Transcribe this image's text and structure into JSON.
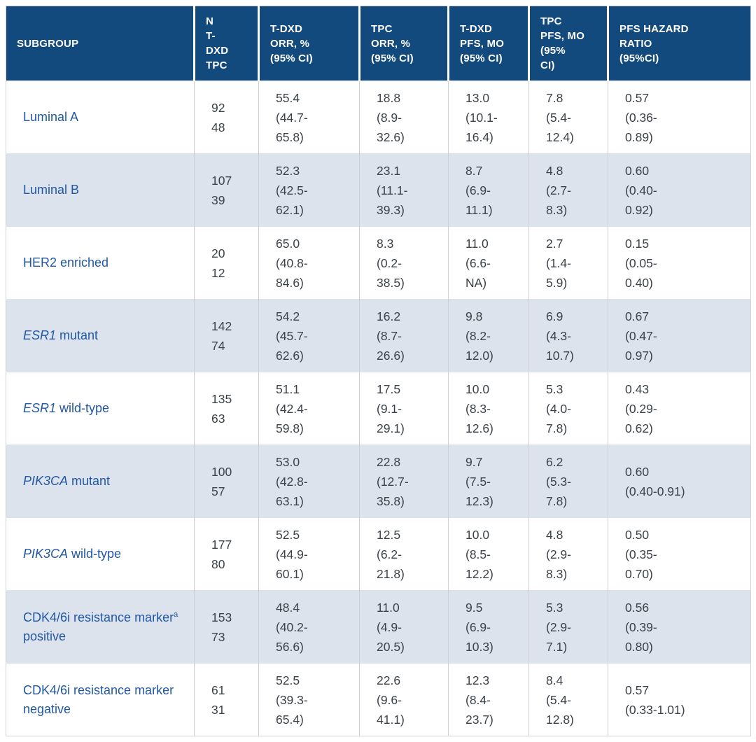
{
  "colors": {
    "header_bg": "#134A7D",
    "header_text": "#FFFFFF",
    "row_bg": "#FFFFFF",
    "row_alt_bg": "#DCE3ED",
    "subgroup_text": "#2158A5",
    "data_text": "#3B4248",
    "grid_line": "#CCD1D7"
  },
  "table": {
    "columns": [
      {
        "id": "subgroup",
        "label": "SUBGROUP",
        "lines": [
          "SUBGROUP"
        ]
      },
      {
        "id": "n",
        "label": "N T-DXD TPC",
        "lines": [
          "N",
          "T-",
          "DXD",
          "TPC"
        ]
      },
      {
        "id": "tdxd-orr",
        "label": "T-DXD ORR, % (95% CI)",
        "lines": [
          "T-DXD",
          "ORR, %",
          "(95% CI)"
        ]
      },
      {
        "id": "tpc-orr",
        "label": "TPC ORR, % (95% CI)",
        "lines": [
          "TPC",
          "ORR, %",
          "(95% CI)"
        ]
      },
      {
        "id": "tdxd-pfs",
        "label": "T-DXD PFS, MO (95% CI)",
        "lines": [
          "T-DXD",
          "PFS, MO",
          "(95% CI)"
        ]
      },
      {
        "id": "tpc-pfs",
        "label": "TPC PFS, MO (95% CI)",
        "lines": [
          "TPC",
          "PFS, MO",
          "(95%",
          "CI)"
        ]
      },
      {
        "id": "hazard-ratio",
        "label": "PFS HAZARD RATIO (95%CI)",
        "lines": [
          "PFS HAZARD",
          "RATIO",
          "(95%CI)"
        ]
      }
    ],
    "rows": [
      {
        "subgroup": {
          "italic": "",
          "text": "Luminal A",
          "sup": "",
          "post": ""
        },
        "cells": [
          [
            "92",
            "48"
          ],
          [
            "55.4",
            "(44.7-",
            "65.8)"
          ],
          [
            "18.8",
            "(8.9-",
            "32.6)"
          ],
          [
            "13.0",
            "(10.1-",
            "16.4)"
          ],
          [
            "7.8",
            "(5.4-",
            "12.4)"
          ],
          [
            "0.57",
            "(0.36-",
            "0.89)"
          ]
        ]
      },
      {
        "subgroup": {
          "italic": "",
          "text": "Luminal B",
          "sup": "",
          "post": ""
        },
        "cells": [
          [
            "107",
            "39"
          ],
          [
            "52.3",
            "(42.5-",
            "62.1)"
          ],
          [
            "23.1",
            "(11.1-",
            "39.3)"
          ],
          [
            "8.7",
            "(6.9-",
            "11.1)"
          ],
          [
            "4.8",
            "(2.7-",
            "8.3)"
          ],
          [
            "0.60",
            "(0.40-",
            "0.92)"
          ]
        ]
      },
      {
        "subgroup": {
          "italic": "",
          "text": "HER2 enriched",
          "sup": "",
          "post": ""
        },
        "cells": [
          [
            "20",
            "12"
          ],
          [
            "65.0",
            "(40.8-",
            "84.6)"
          ],
          [
            "8.3",
            "(0.2-",
            "38.5)"
          ],
          [
            "11.0",
            "(6.6-",
            "NA)"
          ],
          [
            "2.7",
            "(1.4-",
            "5.9)"
          ],
          [
            "0.15",
            "(0.05-",
            "0.40)"
          ]
        ]
      },
      {
        "subgroup": {
          "italic": "ESR1",
          "text": " mutant",
          "sup": "",
          "post": ""
        },
        "cells": [
          [
            "142",
            "74"
          ],
          [
            "54.2",
            "(45.7-",
            "62.6)"
          ],
          [
            "16.2",
            "(8.7-",
            "26.6)"
          ],
          [
            "9.8",
            "(8.2-",
            "12.0)"
          ],
          [
            "6.9",
            "(4.3-",
            "10.7)"
          ],
          [
            "0.67",
            "(0.47-",
            "0.97)"
          ]
        ]
      },
      {
        "subgroup": {
          "italic": "ESR1",
          "text": " wild-type",
          "sup": "",
          "post": ""
        },
        "cells": [
          [
            "135",
            "63"
          ],
          [
            "51.1",
            "(42.4-",
            "59.8)"
          ],
          [
            "17.5",
            "(9.1-",
            "29.1)"
          ],
          [
            "10.0",
            "(8.3-",
            "12.6)"
          ],
          [
            "5.3",
            "(4.0-",
            "7.8)"
          ],
          [
            "0.43",
            "(0.29-",
            "0.62)"
          ]
        ]
      },
      {
        "subgroup": {
          "italic": "PIK3CA",
          "text": " mutant",
          "sup": "",
          "post": ""
        },
        "cells": [
          [
            "100",
            "57"
          ],
          [
            "53.0",
            "(42.8-",
            "63.1)"
          ],
          [
            "22.8",
            "(12.7-",
            "35.8)"
          ],
          [
            "9.7",
            "(7.5-",
            "12.3)"
          ],
          [
            "6.2",
            "(5.3-",
            "7.8)"
          ],
          [
            "0.60",
            "(0.40-0.91)"
          ]
        ]
      },
      {
        "subgroup": {
          "italic": "PIK3CA",
          "text": " wild-type",
          "sup": "",
          "post": ""
        },
        "cells": [
          [
            "177",
            "80"
          ],
          [
            "52.5",
            "(44.9-",
            "60.1)"
          ],
          [
            "12.5",
            "(6.2-",
            "21.8)"
          ],
          [
            "10.0",
            "(8.5-",
            "12.2)"
          ],
          [
            "4.8",
            "(2.9-",
            "8.3)"
          ],
          [
            "0.50",
            "(0.35-",
            "0.70)"
          ]
        ]
      },
      {
        "subgroup": {
          "italic": "",
          "text": "CDK4/6i resistance marker",
          "sup": "a",
          "post": " positive"
        },
        "cells": [
          [
            "153",
            "73"
          ],
          [
            "48.4",
            "(40.2-",
            "56.6)"
          ],
          [
            "11.0",
            "(4.9-",
            "20.5)"
          ],
          [
            "9.5",
            "(6.9-",
            "10.3)"
          ],
          [
            "5.3",
            "(2.9-",
            "7.1)"
          ],
          [
            "0.56",
            "(0.39-",
            "0.80)"
          ]
        ]
      },
      {
        "subgroup": {
          "italic": "",
          "text": "CDK4/6i resistance marker negative",
          "sup": "",
          "post": ""
        },
        "cells": [
          [
            "61",
            "31"
          ],
          [
            "52.5",
            "(39.3-",
            "65.4)"
          ],
          [
            "22.6",
            "(9.6-",
            "41.1)"
          ],
          [
            "12.3",
            "(8.4-",
            "23.7)"
          ],
          [
            "8.4",
            "(5.4-",
            "12.8)"
          ],
          [
            "0.57",
            "(0.33-1.01)"
          ]
        ]
      }
    ]
  }
}
